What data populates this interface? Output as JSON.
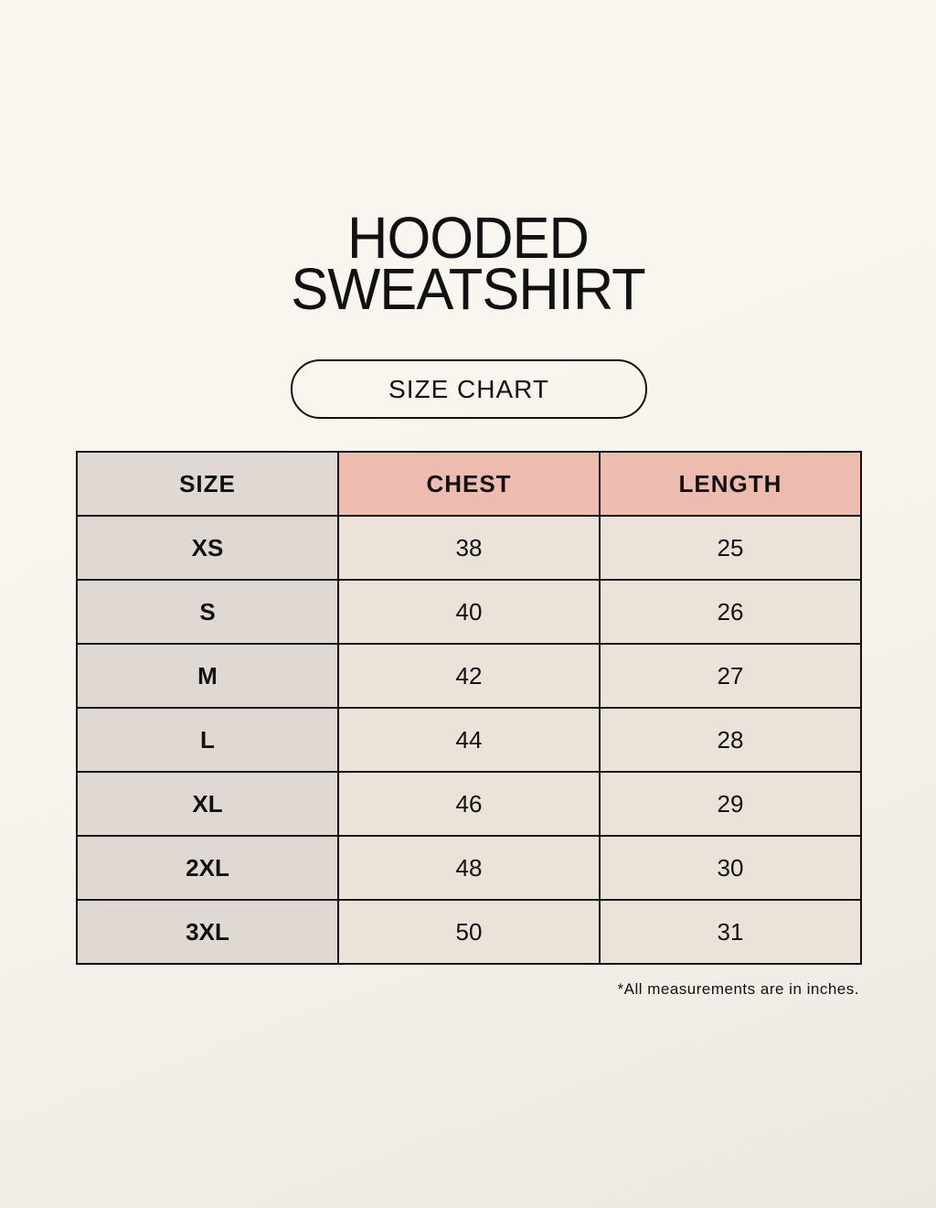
{
  "title": {
    "line1": "HOODED",
    "line2": "SWEATSHIRT"
  },
  "subtitle": "SIZE CHART",
  "table": {
    "headers": [
      "SIZE",
      "CHEST",
      "LENGTH"
    ],
    "rows": [
      [
        "XS",
        "38",
        "25"
      ],
      [
        "S",
        "40",
        "26"
      ],
      [
        "M",
        "42",
        "27"
      ],
      [
        "L",
        "44",
        "28"
      ],
      [
        "XL",
        "46",
        "29"
      ],
      [
        "2XL",
        "48",
        "30"
      ],
      [
        "3XL",
        "50",
        "31"
      ]
    ]
  },
  "note": "*All measurements are in inches.",
  "colors": {
    "size_column": "#dfd8d3",
    "header_accent": "#edbcae",
    "cell": "#ebe3d9",
    "background": "#f8f6ef"
  }
}
